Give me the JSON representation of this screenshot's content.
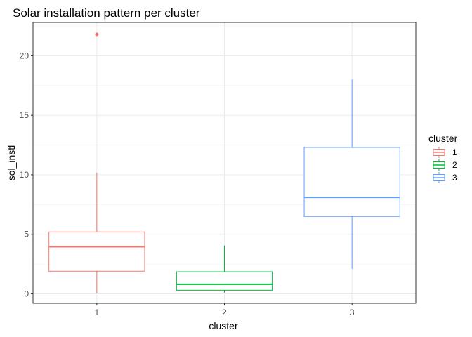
{
  "chart_data": {
    "type": "boxplot",
    "title": "Solar installation pattern per cluster",
    "xlabel": "cluster",
    "ylabel": "sol_instl",
    "categories": [
      "1",
      "2",
      "3"
    ],
    "ylim": [
      -0.8,
      22.8
    ],
    "yticks": [
      0,
      5,
      10,
      15,
      20
    ],
    "grid": true,
    "legend": {
      "title": "cluster",
      "placement": "right",
      "entries": [
        "1",
        "2",
        "3"
      ]
    },
    "series": [
      {
        "category": "1",
        "color": "#F8766D",
        "lower_whisker": 0.05,
        "q1": 1.9,
        "median": 3.95,
        "q3": 5.2,
        "upper_whisker": 10.15,
        "outliers": [
          21.8
        ]
      },
      {
        "category": "2",
        "color": "#00BA38",
        "lower_whisker": 0.1,
        "q1": 0.3,
        "median": 0.8,
        "q3": 1.85,
        "upper_whisker": 4.05,
        "outliers": []
      },
      {
        "category": "3",
        "color": "#619CFF",
        "lower_whisker": 2.1,
        "q1": 6.5,
        "median": 8.1,
        "q3": 12.3,
        "upper_whisker": 18.0,
        "outliers": []
      }
    ]
  }
}
